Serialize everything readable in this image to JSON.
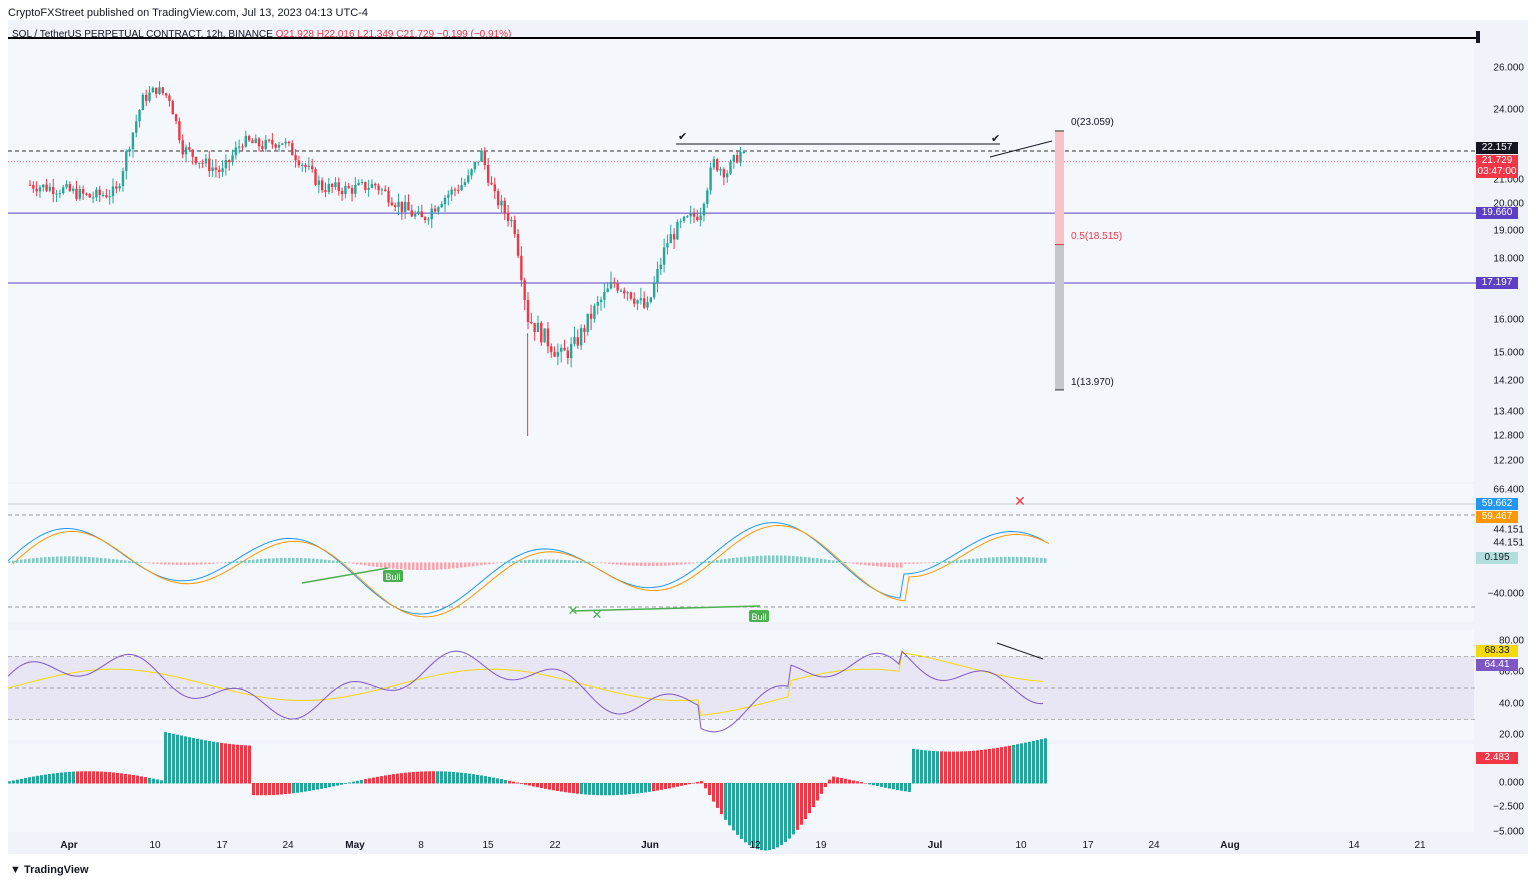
{
  "header": {
    "published": "CryptoFXStreet published on TradingView.com, Jul 13, 2023 04:13 UTC-4"
  },
  "symbol": {
    "name": "SOL / TetherUS PERPETUAL CONTRACT, 12h, BINANCE",
    "ohlc": "O21.928 H22.016 L21.349 C21.729 −0.199 (−0.91%)"
  },
  "footer": {
    "brand": "TradingView"
  },
  "price_axis": {
    "ticks": [
      "26.000",
      "24.000",
      "21.000",
      "20.000",
      "19.000",
      "18.000",
      "16.000",
      "15.000",
      "14.200",
      "13.400",
      "12.800",
      "12.200"
    ]
  },
  "price_badges": [
    {
      "text": "22.157",
      "color": "#131722"
    },
    {
      "text": "21.729",
      "color": "#f23645"
    },
    {
      "text": "03:47:00",
      "color": "#f23645"
    },
    {
      "text": "19.660",
      "color": "#5b3fc4"
    },
    {
      "text": "17.197",
      "color": "#5b3fc4"
    }
  ],
  "fib_labels": {
    "top": "0(23.059)",
    "mid": "0.5(18.515)",
    "bottom": "1(13.970)"
  },
  "macd_axis": {
    "ticks": [
      "66.400",
      "44.151",
      "44.151",
      "−40.000"
    ],
    "badges": [
      {
        "text": "59.662",
        "color": "#2196f3"
      },
      {
        "text": "59.467",
        "color": "#ff9800"
      },
      {
        "text": "0.195",
        "color": "#b2dfdb"
      }
    ]
  },
  "macd_bull_label": "Bull",
  "rsi_axis": {
    "ticks": [
      "80.00",
      "60.00",
      "40.00",
      "20.00"
    ],
    "badges": [
      {
        "text": "68.33",
        "color": "#f5d90a"
      },
      {
        "text": "64.41",
        "color": "#7e57c2"
      }
    ]
  },
  "osc_axis": {
    "ticks": [
      "0.000",
      "−2.500",
      "−5.000"
    ],
    "badges": [
      {
        "text": "2.483",
        "color": "#f23645"
      }
    ]
  },
  "x_axis": {
    "labels": [
      "Apr",
      "10",
      "17",
      "24",
      "May",
      "8",
      "15",
      "22",
      "Jun",
      "12",
      "19",
      "Jul",
      "10",
      "17",
      "24",
      "Aug",
      "14",
      "21"
    ]
  },
  "colors": {
    "up": "#26a69a",
    "down": "#f23645",
    "hline": "#5b3fc4"
  },
  "chart_data": {
    "type": "candlestick",
    "title": "SOL / TetherUS PERPETUAL CONTRACT, 12h, BINANCE",
    "price_range": [
      11.9,
      27.2
    ],
    "last_price": 21.729,
    "levels": [
      22.157,
      19.66,
      17.197
    ],
    "fibonacci": {
      "0": 23.059,
      "0.5": 18.515,
      "1": 13.97
    },
    "close_path": [
      [
        "2023-03-27",
        20.8
      ],
      [
        "2023-04-01",
        20.6
      ],
      [
        "2023-04-05",
        20.3
      ],
      [
        "2023-04-09",
        20.5
      ],
      [
        "2023-04-11",
        22.5
      ],
      [
        "2023-04-13",
        24.5
      ],
      [
        "2023-04-15",
        25.0
      ],
      [
        "2023-04-17",
        24.6
      ],
      [
        "2023-04-19",
        22.3
      ],
      [
        "2023-04-22",
        21.7
      ],
      [
        "2023-04-25",
        21.3
      ],
      [
        "2023-04-28",
        22.6
      ],
      [
        "2023-05-01",
        22.4
      ],
      [
        "2023-05-04",
        22.6
      ],
      [
        "2023-05-07",
        21.7
      ],
      [
        "2023-05-10",
        20.7
      ],
      [
        "2023-05-14",
        20.6
      ],
      [
        "2023-05-18",
        20.8
      ],
      [
        "2023-05-22",
        19.9
      ],
      [
        "2023-05-25",
        19.4
      ],
      [
        "2023-05-28",
        20.2
      ],
      [
        "2023-06-01",
        21.0
      ],
      [
        "2023-06-03",
        22.1
      ],
      [
        "2023-06-05",
        20.3
      ],
      [
        "2023-06-08",
        19.2
      ],
      [
        "2023-06-10",
        16.1
      ],
      [
        "2023-06-12",
        15.6
      ],
      [
        "2023-06-15",
        14.9
      ],
      [
        "2023-06-17",
        15.2
      ],
      [
        "2023-06-20",
        16.3
      ],
      [
        "2023-06-23",
        17.2
      ],
      [
        "2023-06-25",
        17.0
      ],
      [
        "2023-06-28",
        16.3
      ],
      [
        "2023-07-01",
        18.6
      ],
      [
        "2023-07-03",
        19.2
      ],
      [
        "2023-07-06",
        19.7
      ],
      [
        "2023-07-08",
        21.7
      ],
      [
        "2023-07-10",
        21.3
      ],
      [
        "2023-07-12",
        22.1
      ],
      [
        "2023-07-13",
        21.729
      ]
    ],
    "low_wick": {
      "date": "2023-06-10",
      "price": 12.8
    },
    "indicators": {
      "macd": {
        "value": 59.662,
        "signal": 59.467,
        "histogram": 0.195,
        "ylim": [
          -40,
          66.4
        ]
      },
      "rsi": {
        "value": 64.41,
        "ma": 68.33,
        "bands": [
          30,
          50,
          70
        ],
        "ylim": [
          20,
          80
        ]
      },
      "oscillator": {
        "value": 2.483,
        "ylim": [
          -5,
          2.5
        ]
      }
    }
  }
}
